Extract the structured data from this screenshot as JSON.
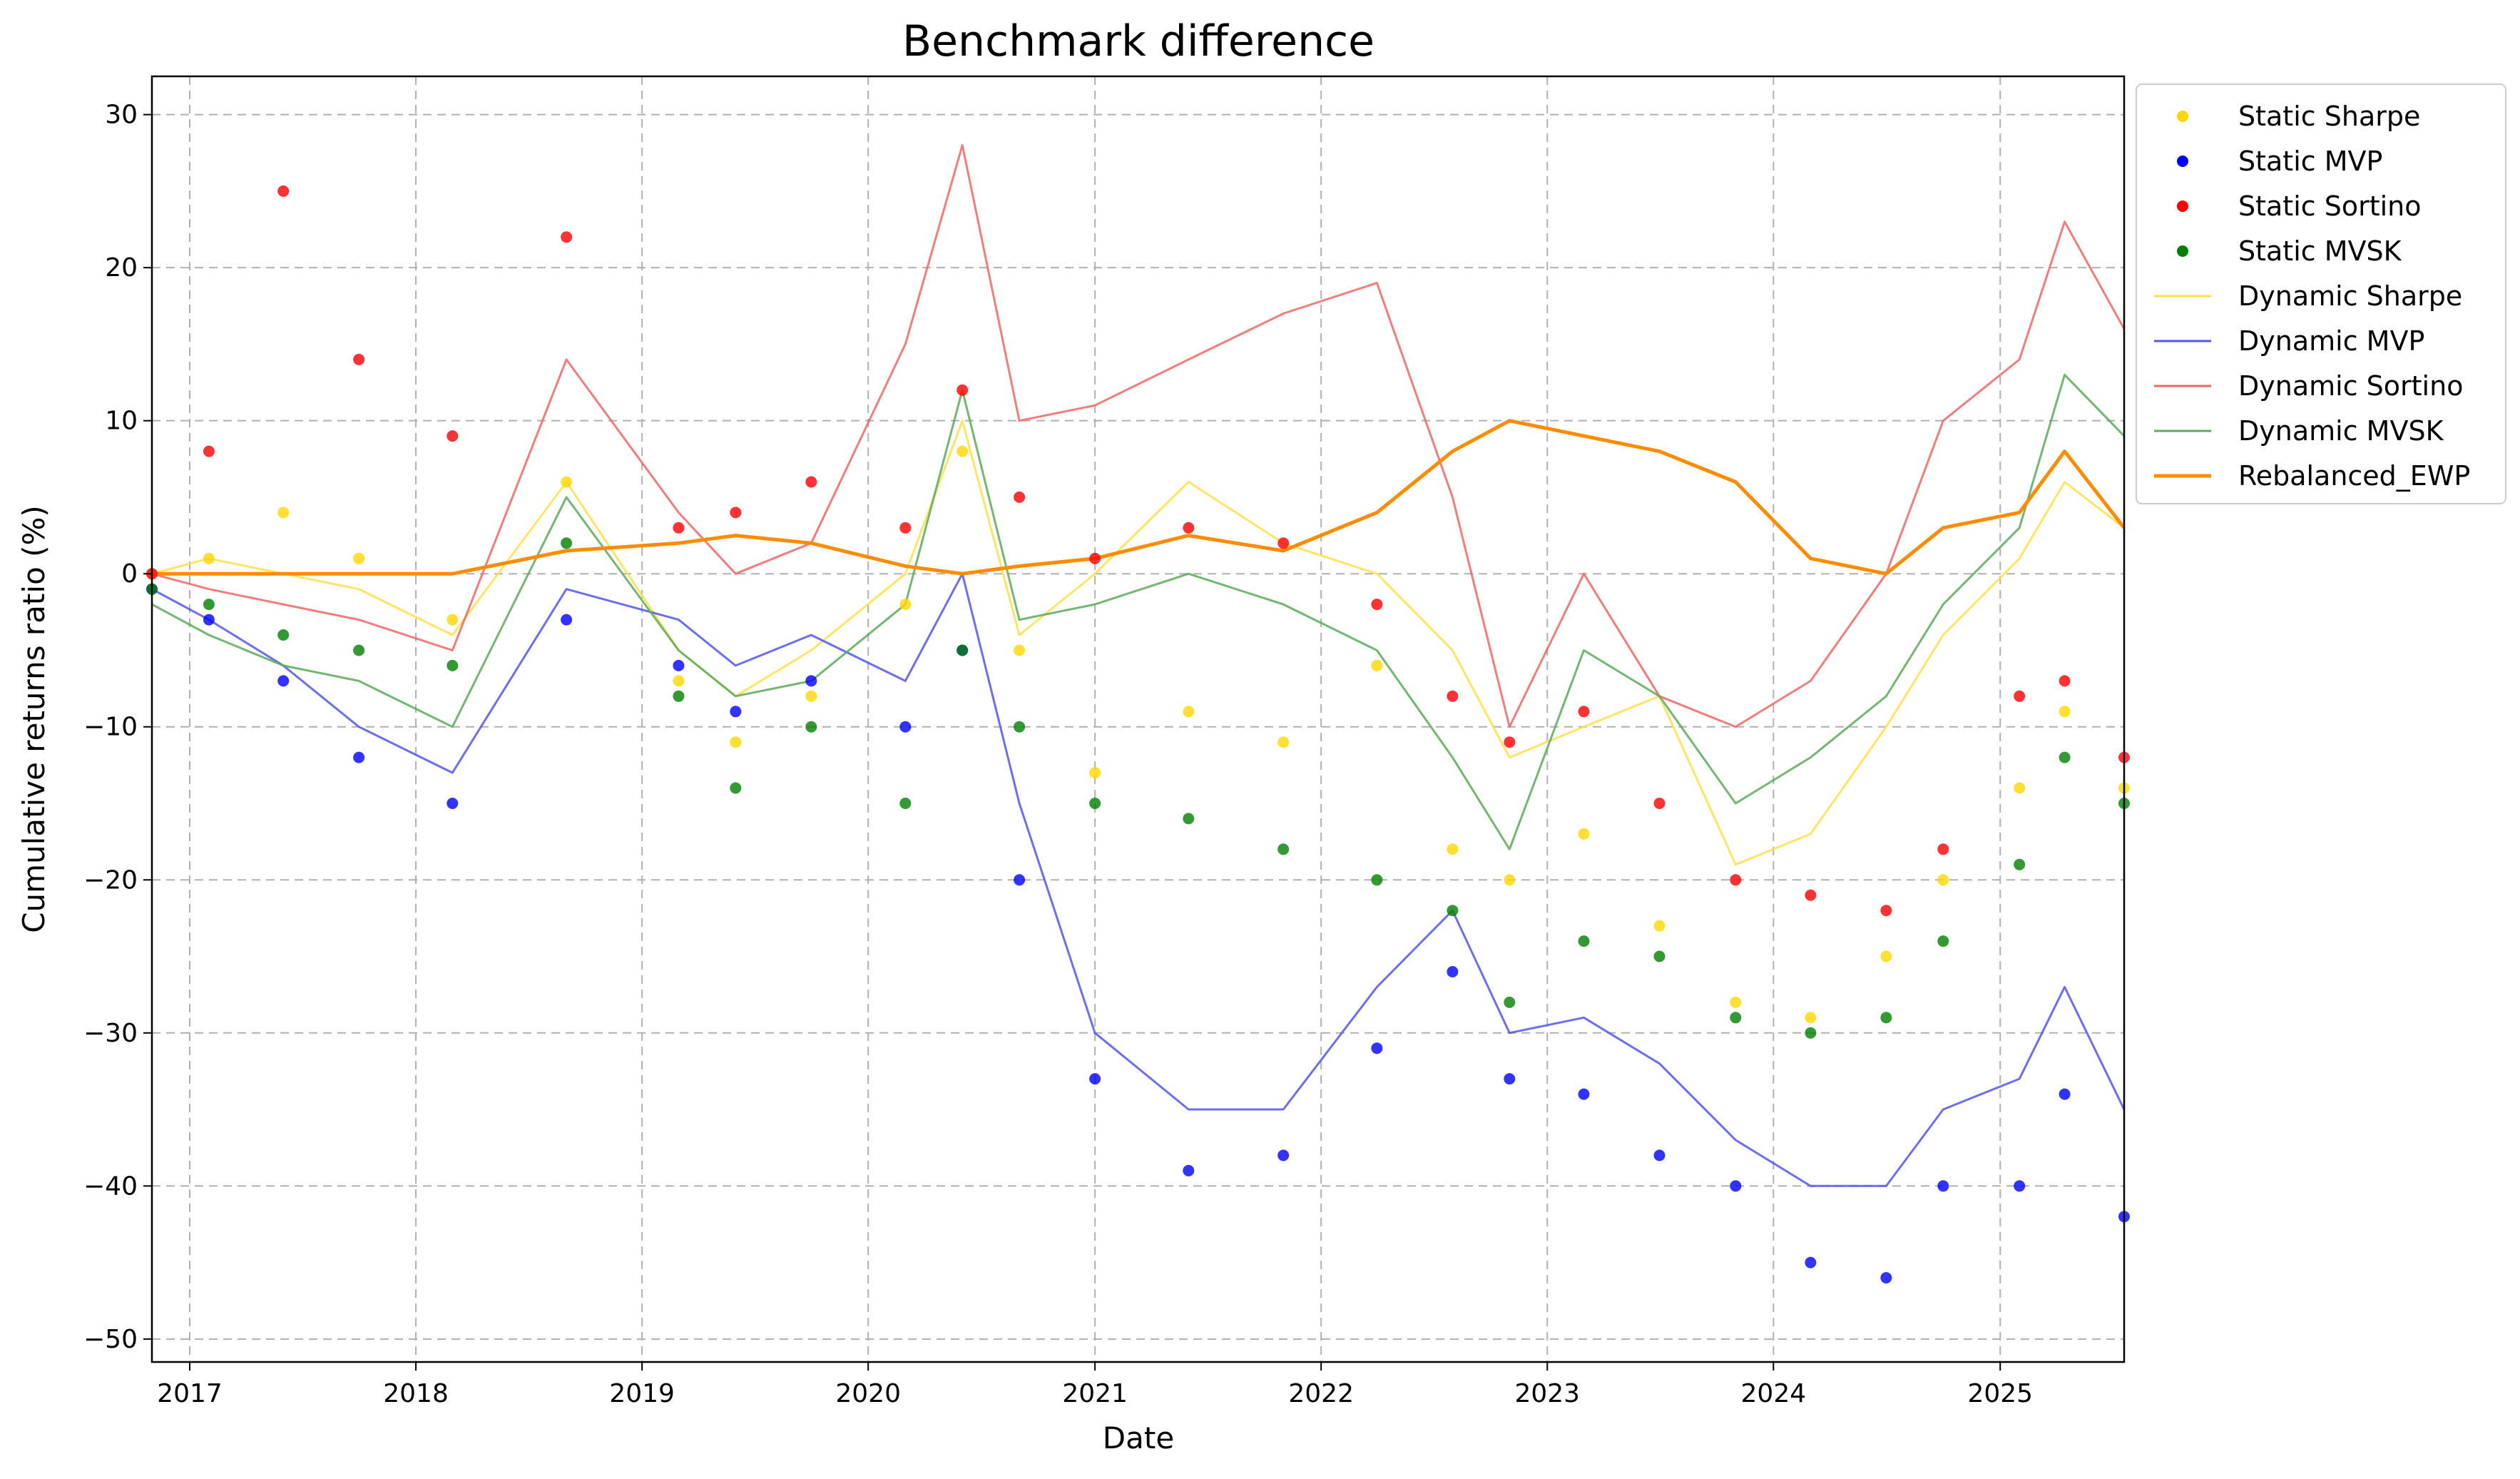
{
  "chart_data": {
    "type": "line",
    "title": "Benchmark difference",
    "xlabel": "Date",
    "ylabel": "Cumulative returns ratio (%)",
    "xlim": [
      "2016-11-01",
      "2025-07-20"
    ],
    "ylim": [
      -51.5,
      32.5
    ],
    "x_ticks": [
      "2017",
      "2018",
      "2019",
      "2020",
      "2021",
      "2022",
      "2023",
      "2024",
      "2025"
    ],
    "y_ticks": [
      30,
      20,
      10,
      0,
      -10,
      -20,
      -30,
      -40,
      -50
    ],
    "y_tick_labels": [
      "30",
      "20",
      "10",
      "0",
      "−10",
      "−20",
      "−30",
      "−40",
      "−50"
    ],
    "grid": true,
    "legend_position": "outside upper right",
    "series": [
      {
        "name": "Static Sharpe",
        "style": "dots",
        "color": "#ffd700",
        "x": [
          "2016-11-01",
          "2017-02-01",
          "2017-06-01",
          "2017-10-01",
          "2018-03-01",
          "2018-09-01",
          "2019-03-01",
          "2019-06-01",
          "2019-10-01",
          "2020-03-01",
          "2020-06-01",
          "2020-09-01",
          "2021-01-01",
          "2021-06-01",
          "2021-11-01",
          "2022-04-01",
          "2022-08-01",
          "2022-11-01",
          "2023-03-01",
          "2023-07-01",
          "2023-11-01",
          "2024-03-01",
          "2024-07-01",
          "2024-10-01",
          "2025-02-01",
          "2025-04-15",
          "2025-07-20"
        ],
        "y": [
          0,
          1,
          4,
          1,
          -3,
          6,
          -7,
          -11,
          -8,
          -2,
          8,
          -5,
          -13,
          -9,
          -11,
          -6,
          -18,
          -20,
          -17,
          -23,
          -28,
          -29,
          -25,
          -20,
          -14,
          -9,
          -14
        ]
      },
      {
        "name": "Static MVP",
        "style": "dots",
        "color": "#0000ff",
        "x": [
          "2016-11-01",
          "2017-02-01",
          "2017-06-01",
          "2017-10-01",
          "2018-03-01",
          "2018-09-01",
          "2019-03-01",
          "2019-06-01",
          "2019-10-01",
          "2020-03-01",
          "2020-06-01",
          "2020-09-01",
          "2021-01-01",
          "2021-06-01",
          "2021-11-01",
          "2022-04-01",
          "2022-08-01",
          "2022-11-01",
          "2023-03-01",
          "2023-07-01",
          "2023-11-01",
          "2024-03-01",
          "2024-07-01",
          "2024-10-01",
          "2025-02-01",
          "2025-04-15",
          "2025-07-20"
        ],
        "y": [
          -1,
          -3,
          -7,
          -12,
          -15,
          -3,
          -6,
          -9,
          -7,
          -10,
          -5,
          -20,
          -33,
          -39,
          -38,
          -31,
          -26,
          -33,
          -34,
          -38,
          -40,
          -45,
          -46,
          -40,
          -40,
          -34,
          -42
        ]
      },
      {
        "name": "Static Sortino",
        "style": "dots",
        "color": "#ff0000",
        "x": [
          "2016-11-01",
          "2017-02-01",
          "2017-06-01",
          "2017-10-01",
          "2018-03-01",
          "2018-09-01",
          "2019-03-01",
          "2019-06-01",
          "2019-10-01",
          "2020-03-01",
          "2020-06-01",
          "2020-09-01",
          "2021-01-01",
          "2021-06-01",
          "2021-11-01",
          "2022-04-01",
          "2022-08-01",
          "2022-11-01",
          "2023-03-01",
          "2023-07-01",
          "2023-11-01",
          "2024-03-01",
          "2024-07-01",
          "2024-10-01",
          "2025-02-01",
          "2025-04-15",
          "2025-07-20"
        ],
        "y": [
          0,
          8,
          25,
          14,
          9,
          22,
          3,
          4,
          6,
          3,
          12,
          5,
          1,
          3,
          2,
          -2,
          -8,
          -11,
          -9,
          -15,
          -20,
          -21,
          -22,
          -18,
          -8,
          -7,
          -12
        ]
      },
      {
        "name": "Static MVSK",
        "style": "dots",
        "color": "#008000",
        "x": [
          "2016-11-01",
          "2017-02-01",
          "2017-06-01",
          "2017-10-01",
          "2018-03-01",
          "2018-09-01",
          "2019-03-01",
          "2019-06-01",
          "2019-10-01",
          "2020-03-01",
          "2020-06-01",
          "2020-09-01",
          "2021-01-01",
          "2021-06-01",
          "2021-11-01",
          "2022-04-01",
          "2022-08-01",
          "2022-11-01",
          "2023-03-01",
          "2023-07-01",
          "2023-11-01",
          "2024-03-01",
          "2024-07-01",
          "2024-10-01",
          "2025-02-01",
          "2025-04-15",
          "2025-07-20"
        ],
        "y": [
          -1,
          -2,
          -4,
          -5,
          -6,
          2,
          -8,
          -14,
          -10,
          -15,
          -5,
          -10,
          -15,
          -16,
          -18,
          -20,
          -22,
          -28,
          -24,
          -25,
          -29,
          -30,
          -29,
          -24,
          -19,
          -12,
          -15
        ]
      },
      {
        "name": "Dynamic Sharpe",
        "style": "line",
        "color": "#ffe04a",
        "x": [
          "2016-11-01",
          "2017-02-01",
          "2017-06-01",
          "2017-10-01",
          "2018-03-01",
          "2018-09-01",
          "2019-03-01",
          "2019-06-01",
          "2019-10-01",
          "2020-03-01",
          "2020-06-01",
          "2020-09-01",
          "2021-01-01",
          "2021-06-01",
          "2021-11-01",
          "2022-04-01",
          "2022-08-01",
          "2022-11-01",
          "2023-03-01",
          "2023-07-01",
          "2023-11-01",
          "2024-03-01",
          "2024-07-01",
          "2024-10-01",
          "2025-02-01",
          "2025-04-15",
          "2025-07-20"
        ],
        "y": [
          0,
          1,
          0,
          -1,
          -4,
          6,
          -5,
          -8,
          -5,
          0,
          10,
          -4,
          0,
          6,
          2,
          0,
          -5,
          -12,
          -10,
          -8,
          -19,
          -17,
          -10,
          -4,
          1,
          6,
          3
        ]
      },
      {
        "name": "Dynamic MVP",
        "style": "line",
        "color": "#5555ee",
        "x": [
          "2016-11-01",
          "2017-02-01",
          "2017-06-01",
          "2017-10-01",
          "2018-03-01",
          "2018-09-01",
          "2019-03-01",
          "2019-06-01",
          "2019-10-01",
          "2020-03-01",
          "2020-06-01",
          "2020-09-01",
          "2021-01-01",
          "2021-06-01",
          "2021-11-01",
          "2022-04-01",
          "2022-08-01",
          "2022-11-01",
          "2023-03-01",
          "2023-07-01",
          "2023-11-01",
          "2024-03-01",
          "2024-07-01",
          "2024-10-01",
          "2025-02-01",
          "2025-04-15",
          "2025-07-20"
        ],
        "y": [
          -1,
          -3,
          -6,
          -10,
          -13,
          -1,
          -3,
          -6,
          -4,
          -7,
          0,
          -15,
          -30,
          -35,
          -35,
          -27,
          -22,
          -30,
          -29,
          -32,
          -37,
          -40,
          -40,
          -35,
          -33,
          -27,
          -35
        ]
      },
      {
        "name": "Dynamic Sortino",
        "style": "line",
        "color": "#ee6666",
        "x": [
          "2016-11-01",
          "2017-02-01",
          "2017-06-01",
          "2017-10-01",
          "2018-03-01",
          "2018-09-01",
          "2019-03-01",
          "2019-06-01",
          "2019-10-01",
          "2020-03-01",
          "2020-06-01",
          "2020-09-01",
          "2021-01-01",
          "2021-06-01",
          "2021-11-01",
          "2022-04-01",
          "2022-08-01",
          "2022-11-01",
          "2023-03-01",
          "2023-07-01",
          "2023-11-01",
          "2024-03-01",
          "2024-07-01",
          "2024-10-01",
          "2025-02-01",
          "2025-04-15",
          "2025-07-20"
        ],
        "y": [
          0,
          -1,
          -2,
          -3,
          -5,
          14,
          4,
          0,
          2,
          15,
          28,
          10,
          11,
          14,
          17,
          19,
          5,
          -10,
          0,
          -8,
          -10,
          -7,
          0,
          10,
          14,
          23,
          16
        ]
      },
      {
        "name": "Dynamic MVSK",
        "style": "line",
        "color": "#5caa5c",
        "x": [
          "2016-11-01",
          "2017-02-01",
          "2017-06-01",
          "2017-10-01",
          "2018-03-01",
          "2018-09-01",
          "2019-03-01",
          "2019-06-01",
          "2019-10-01",
          "2020-03-01",
          "2020-06-01",
          "2020-09-01",
          "2021-01-01",
          "2021-06-01",
          "2021-11-01",
          "2022-04-01",
          "2022-08-01",
          "2022-11-01",
          "2023-03-01",
          "2023-07-01",
          "2023-11-01",
          "2024-03-01",
          "2024-07-01",
          "2024-10-01",
          "2025-02-01",
          "2025-04-15",
          "2025-07-20"
        ],
        "y": [
          -2,
          -4,
          -6,
          -7,
          -10,
          5,
          -5,
          -8,
          -7,
          -2,
          12,
          -3,
          -2,
          0,
          -2,
          -5,
          -12,
          -18,
          -5,
          -8,
          -15,
          -12,
          -8,
          -2,
          3,
          13,
          9
        ]
      },
      {
        "name": "Rebalanced_EWP",
        "style": "line",
        "color": "#ff8c00",
        "x": [
          "2016-11-01",
          "2017-02-01",
          "2017-06-01",
          "2017-10-01",
          "2018-03-01",
          "2018-09-01",
          "2019-03-01",
          "2019-06-01",
          "2019-10-01",
          "2020-03-01",
          "2020-06-01",
          "2020-09-01",
          "2021-01-01",
          "2021-06-01",
          "2021-11-01",
          "2022-04-01",
          "2022-08-01",
          "2022-11-01",
          "2023-03-01",
          "2023-07-01",
          "2023-11-01",
          "2024-03-01",
          "2024-07-01",
          "2024-10-01",
          "2025-02-01",
          "2025-04-15",
          "2025-07-20"
        ],
        "y": [
          0,
          0,
          0,
          0,
          0,
          1.5,
          2,
          2.5,
          2,
          0.5,
          0,
          0.5,
          1,
          2.5,
          1.5,
          4,
          8,
          10,
          9,
          8,
          6,
          1,
          0,
          3,
          4,
          8,
          3
        ]
      }
    ]
  }
}
